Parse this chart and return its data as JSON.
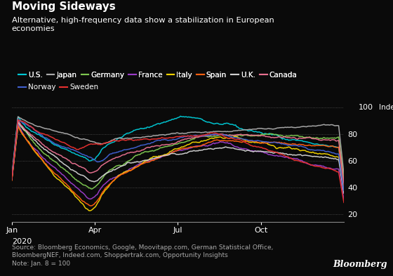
{
  "title": "Moving Sideways",
  "subtitle": "Alternative, high-frequency data show a stabilization in European\neconomies",
  "source_text": "Source: Bloomberg Economics, Google, Moovitapp.com, German Statistical Office,\nBloombergNEF, Indeed.com, Shoppertrak.com, Opportunity Insights\nNote: Jan. 8 = 100",
  "bloomberg_label": "Bloomberg",
  "background_color": "#0a0a0a",
  "text_color": "#ffffff",
  "grid_color": "#555555",
  "axis_color": "#888888",
  "countries": [
    "U.S.",
    "Japan",
    "Germany",
    "France",
    "Italy",
    "Spain",
    "U.K.",
    "Canada",
    "Norway",
    "Sweden"
  ],
  "colors": [
    "#00c8d4",
    "#aaaaaa",
    "#7ec850",
    "#9b3cc8",
    "#f0d000",
    "#ff6010",
    "#d0d0d0",
    "#e87090",
    "#4060d0",
    "#e83030"
  ],
  "n_points": 320
}
